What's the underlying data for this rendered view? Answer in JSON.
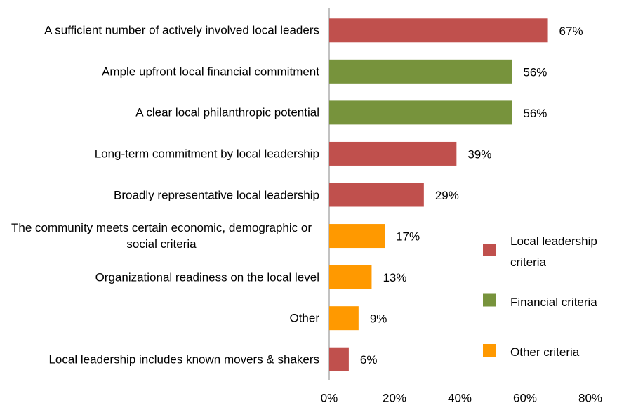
{
  "chart_data": {
    "type": "bar",
    "orientation": "horizontal",
    "categories": [
      "A sufficient number of actively involved local leaders",
      "Ample upfront local financial commitment",
      "A clear local philanthropic potential",
      "Long-term commitment by local leadership",
      "Broadly representative local leadership",
      "The community meets certain economic, demographic or social criteria",
      "Organizational readiness on the local level",
      "Other",
      "Local leadership includes known movers & shakers"
    ],
    "series": [
      {
        "name": "Local leadership criteria",
        "color": "#c0504d",
        "values": [
          67,
          null,
          null,
          39,
          29,
          null,
          null,
          null,
          6
        ],
        "value_labels": [
          "67%",
          null,
          null,
          "39%",
          "29%",
          null,
          null,
          null,
          "6%"
        ]
      },
      {
        "name": "Financial criteria",
        "color": "#77933c",
        "values": [
          null,
          56,
          56,
          null,
          null,
          null,
          null,
          null,
          null
        ],
        "value_labels": [
          null,
          "56%",
          "56%",
          null,
          null,
          null,
          null,
          null,
          null
        ]
      },
      {
        "name": "Other criteria",
        "color": "#ff9900",
        "values": [
          null,
          null,
          null,
          null,
          null,
          17,
          13,
          9,
          null
        ],
        "value_labels": [
          null,
          null,
          null,
          null,
          null,
          "17%",
          "13%",
          "9%",
          null
        ]
      }
    ],
    "xlim": [
      0,
      80
    ],
    "xticks": [
      {
        "value": 0,
        "label": "0%"
      },
      {
        "value": 20,
        "label": "20%"
      },
      {
        "value": 40,
        "label": "40%"
      },
      {
        "value": 60,
        "label": "60%"
      },
      {
        "value": 80,
        "label": "80%"
      }
    ],
    "legend": "right"
  }
}
